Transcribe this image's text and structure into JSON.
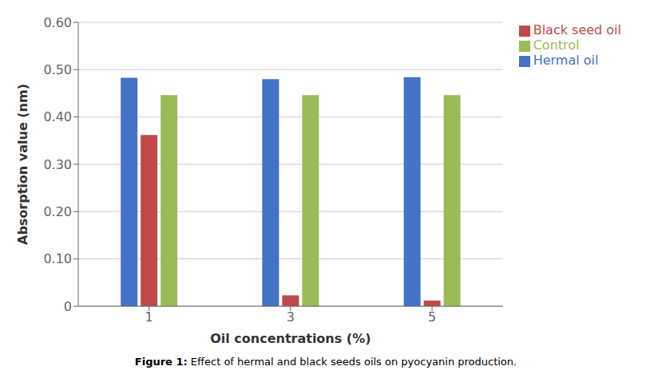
{
  "chart_data": {
    "type": "bar",
    "categories": [
      "1",
      "3",
      "5"
    ],
    "series": [
      {
        "name": "Hermal oil",
        "color": "#4472C4",
        "values": [
          0.483,
          0.48,
          0.484
        ]
      },
      {
        "name": "Black seed oil",
        "color": "#BE4B48",
        "values": [
          0.362,
          0.023,
          0.012
        ]
      },
      {
        "name": "Control",
        "color": "#9BBB59",
        "values": [
          0.446,
          0.446,
          0.446
        ]
      }
    ],
    "xlabel": "Oil concentrations (%)",
    "ylabel": "Absorption value (nm)",
    "ylim": [
      0,
      0.6
    ],
    "yticks": [
      0,
      {
        "value": 0.1,
        "label": "0.10"
      },
      {
        "value": 0.2,
        "label": "0.20"
      },
      {
        "value": 0.3,
        "label": "0.30"
      },
      {
        "value": 0.4,
        "label": "0.40"
      },
      {
        "value": 0.5,
        "label": "0.50"
      },
      {
        "value": 0.6,
        "label": "0.60"
      }
    ],
    "grid": true,
    "legend": "right",
    "caption": "Figure 1: Effect of hermal and black seeds oils on pyocyanin production."
  }
}
